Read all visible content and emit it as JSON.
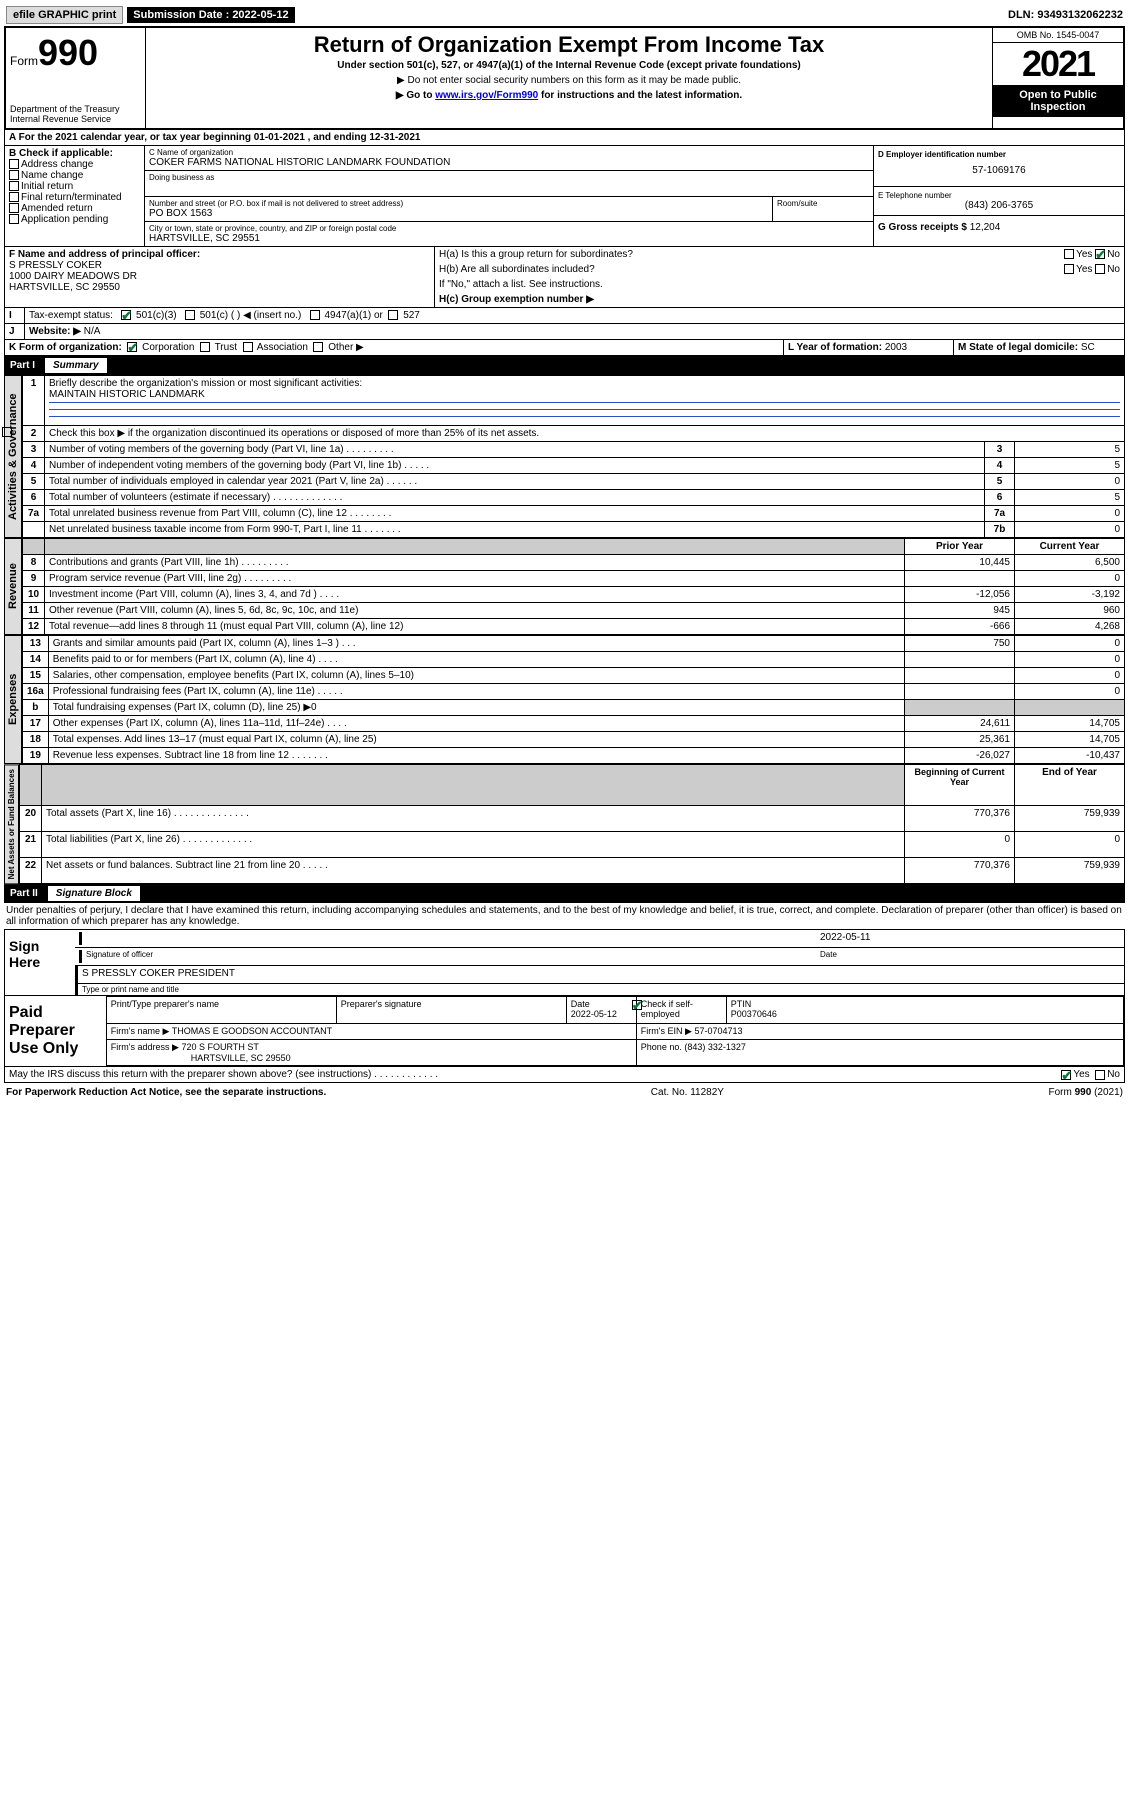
{
  "colors": {
    "link": "#0000cc",
    "check": "#0a7a3a",
    "shade": "#cccccc",
    "rule": "#2a4fbf"
  },
  "topbar": {
    "efile": "efile GRAPHIC print",
    "sub_lbl": "Submission Date : 2022-05-12",
    "dln": "DLN: 93493132062232"
  },
  "header": {
    "form_label": "Form",
    "form_no": "990",
    "dept": "Department of the Treasury",
    "irs": "Internal Revenue Service",
    "title": "Return of Organization Exempt From Income Tax",
    "sub": "Under section 501(c), 527, or 4947(a)(1) of the Internal Revenue Code (except private foundations)",
    "note1": "▶ Do not enter social security numbers on this form as it may be made public.",
    "note2_pre": "▶ Go to ",
    "note2_link": "www.irs.gov/Form990",
    "note2_post": " for instructions and the latest information.",
    "omb": "OMB No. 1545-0047",
    "year": "2021",
    "openpub": "Open to Public Inspection"
  },
  "A": {
    "text": "For the 2021 calendar year, or tax year beginning 01-01-2021    , and ending 12-31-2021"
  },
  "B": {
    "label": "B Check if applicable:",
    "opts": [
      "Address change",
      "Name change",
      "Initial return",
      "Final return/terminated",
      "Amended return",
      "Application pending"
    ]
  },
  "C": {
    "name_lbl": "C Name of organization",
    "name": "COKER FARMS NATIONAL HISTORIC LANDMARK FOUNDATION",
    "dba_lbl": "Doing business as",
    "street_lbl": "Number and street (or P.O. box if mail is not delivered to street address)",
    "room_lbl": "Room/suite",
    "street": "PO BOX 1563",
    "city_lbl": "City or town, state or province, country, and ZIP or foreign postal code",
    "city": "HARTSVILLE, SC  29551"
  },
  "D": {
    "lbl": "D Employer identification number",
    "val": "57-1069176"
  },
  "E": {
    "lbl": "E Telephone number",
    "val": "(843) 206-3765"
  },
  "G": {
    "lbl": "G Gross receipts $",
    "val": "12,204"
  },
  "F": {
    "lbl": "F Name and address of principal officer:",
    "name": "S PRESSLY COKER",
    "addr1": "1000 DAIRY MEADOWS DR",
    "addr2": "HARTSVILLE, SC  29550"
  },
  "H": {
    "a": "H(a)  Is this a group return for subordinates?",
    "b": "H(b)  Are all subordinates included?",
    "note": "If \"No,\" attach a list. See instructions.",
    "c": "H(c)  Group exemption number ▶"
  },
  "I": {
    "lbl": "Tax-exempt status:",
    "o1": "501(c)(3)",
    "o2": "501(c) (  ) ◀ (insert no.)",
    "o3": "4947(a)(1) or",
    "o4": "527"
  },
  "J": {
    "lbl": "Website: ▶",
    "val": "N/A"
  },
  "K": {
    "lbl": "K Form of organization:",
    "o1": "Corporation",
    "o2": "Trust",
    "o3": "Association",
    "o4": "Other ▶"
  },
  "L": {
    "lbl": "L Year of formation:",
    "val": "2003"
  },
  "M": {
    "lbl": "M State of legal domicile:",
    "val": "SC"
  },
  "partI": {
    "num": "Part I",
    "title": "Summary"
  },
  "summary": {
    "q1": "Briefly describe the organization's mission or most significant activities:",
    "q1v": "MAINTAIN HISTORIC LANDMARK",
    "q2": "Check this box ▶                 if the organization discontinued its operations or disposed of more than 25% of its net assets.",
    "rows_plain": [
      {
        "n": "3",
        "t": "Number of voting members of the governing body (Part VI, line 1a)  .   .   .   .   .   .   .   .   .",
        "b": "3",
        "v": "5"
      },
      {
        "n": "4",
        "t": "Number of independent voting members of the governing body (Part VI, line 1b)   .   .   .   .   .",
        "b": "4",
        "v": "5"
      },
      {
        "n": "5",
        "t": "Total number of individuals employed in calendar year 2021 (Part V, line 2a)  .   .   .   .   .   .",
        "b": "5",
        "v": "0"
      },
      {
        "n": "6",
        "t": "Total number of volunteers (estimate if necessary)   .   .   .   .   .   .   .   .   .   .   .   .   .",
        "b": "6",
        "v": "5"
      },
      {
        "n": "7a",
        "t": "Total unrelated business revenue from Part VIII, column (C), line 12   .   .   .   .   .   .   .   .",
        "b": "7a",
        "v": "0"
      },
      {
        "n": "",
        "t": "Net unrelated business taxable income from Form 990-T, Part I, line 11   .   .   .   .   .   .   .",
        "b": "7b",
        "v": "0"
      }
    ],
    "hdr_prior": "Prior Year",
    "hdr_curr": "Current Year",
    "rev": [
      {
        "n": "8",
        "t": "Contributions and grants (Part VIII, line 1h)   .   .   .   .   .   .   .   .   .",
        "p": "10,445",
        "c": "6,500"
      },
      {
        "n": "9",
        "t": "Program service revenue (Part VIII, line 2g)   .   .   .   .   .   .   .   .   .",
        "p": "",
        "c": "0"
      },
      {
        "n": "10",
        "t": "Investment income (Part VIII, column (A), lines 3, 4, and 7d )  .   .   .   .",
        "p": "-12,056",
        "c": "-3,192"
      },
      {
        "n": "11",
        "t": "Other revenue (Part VIII, column (A), lines 5, 6d, 8c, 9c, 10c, and 11e)",
        "p": "945",
        "c": "960"
      },
      {
        "n": "12",
        "t": "Total revenue—add lines 8 through 11 (must equal Part VIII, column (A), line 12)",
        "p": "-666",
        "c": "4,268"
      }
    ],
    "exp": [
      {
        "n": "13",
        "t": "Grants and similar amounts paid (Part IX, column (A), lines 1–3 )   .   .   .",
        "p": "750",
        "c": "0"
      },
      {
        "n": "14",
        "t": "Benefits paid to or for members (Part IX, column (A), line 4)   .   .   .   .",
        "p": "",
        "c": "0"
      },
      {
        "n": "15",
        "t": "Salaries, other compensation, employee benefits (Part IX, column (A), lines 5–10)",
        "p": "",
        "c": "0"
      },
      {
        "n": "16a",
        "t": "Professional fundraising fees (Part IX, column (A), line 11e)   .   .   .   .   .",
        "p": "",
        "c": "0"
      },
      {
        "n": "b",
        "t": "Total fundraising expenses (Part IX, column (D), line 25) ▶0",
        "p": "__shade__",
        "c": "__shade__"
      },
      {
        "n": "17",
        "t": "Other expenses (Part IX, column (A), lines 11a–11d, 11f–24e)  .   .   .   .",
        "p": "24,611",
        "c": "14,705"
      },
      {
        "n": "18",
        "t": "Total expenses. Add lines 13–17 (must equal Part IX, column (A), line 25)",
        "p": "25,361",
        "c": "14,705"
      },
      {
        "n": "19",
        "t": "Revenue less expenses. Subtract line 18 from line 12  .   .   .   .   .   .   .",
        "p": "-26,027",
        "c": "-10,437"
      }
    ],
    "hdr_beg": "Beginning of Current Year",
    "hdr_end": "End of Year",
    "na": [
      {
        "n": "20",
        "t": "Total assets (Part X, line 16)   .   .   .   .   .   .   .   .   .   .   .   .   .   .",
        "p": "770,376",
        "c": "759,939"
      },
      {
        "n": "21",
        "t": "Total liabilities (Part X, line 26)  .   .   .   .   .   .   .   .   .   .   .   .   .",
        "p": "0",
        "c": "0"
      },
      {
        "n": "22",
        "t": "Net assets or fund balances. Subtract line 21 from line 20  .   .   .   .   .",
        "p": "770,376",
        "c": "759,939"
      }
    ],
    "tabs": {
      "ag": "Activities & Governance",
      "rev": "Revenue",
      "exp": "Expenses",
      "na": "Net Assets or Fund Balances"
    }
  },
  "partII": {
    "num": "Part II",
    "title": "Signature Block"
  },
  "decl": "Under penalties of perjury, I declare that I have examined this return, including accompanying schedules and statements, and to the best of my knowledge and belief, it is true, correct, and complete. Declaration of preparer (other than officer) is based on all information of which preparer has any knowledge.",
  "sign": {
    "here": "Sign Here",
    "sig_lbl": "Signature of officer",
    "date_lbl": "Date",
    "date": "2022-05-11",
    "name": "S PRESSLY COKER  PRESIDENT",
    "name_lbl": "Type or print name and title"
  },
  "prep": {
    "title": "Paid Preparer Use Only",
    "h1": "Print/Type preparer's name",
    "h2": "Preparer's signature",
    "h3": "Date",
    "h4": "Check           if self-employed",
    "h5": "PTIN",
    "date": "2022-05-12",
    "ptin": "P00370646",
    "firm_lbl": "Firm's name   ▶",
    "firm": "THOMAS E GOODSON ACCOUNTANT",
    "ein_lbl": "Firm's EIN ▶",
    "ein": "57-0704713",
    "addr_lbl": "Firm's address ▶",
    "addr1": "720 S FOURTH ST",
    "addr2": "HARTSVILLE, SC  29550",
    "phone_lbl": "Phone no.",
    "phone": "(843) 332-1327"
  },
  "discuss": "May the IRS discuss this return with the preparer shown above? (see instructions)    .   .   .   .   .   .   .   .   .   .   .   .",
  "footer": {
    "l": "For Paperwork Reduction Act Notice, see the separate instructions.",
    "m": "Cat. No. 11282Y",
    "r": "Form 990 (2021)"
  },
  "yn": {
    "yes": "Yes",
    "no": "No"
  }
}
